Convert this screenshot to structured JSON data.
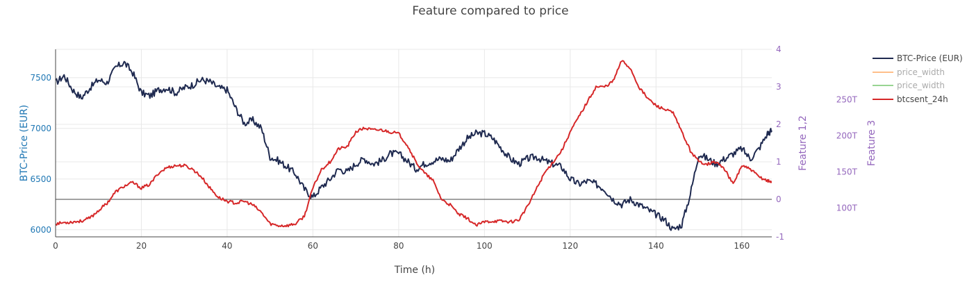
{
  "chart_data": {
    "type": "line",
    "title": "Feature compared to price",
    "xlabel": "Time (h)",
    "ylabel_left": "BTC-Price (EUR)",
    "ylabel_right1": "Feature 1,2",
    "ylabel_right2": "Feature 3",
    "xlim": [
      0,
      167
    ],
    "ylim_left": [
      5930,
      7780
    ],
    "ylim_right1": [
      -1,
      4
    ],
    "ylim_right2": [
      60,
      320
    ],
    "x_ticks": [
      0,
      20,
      40,
      60,
      80,
      100,
      120,
      140,
      160
    ],
    "y_left_ticks": [
      6000,
      6500,
      7000,
      7500
    ],
    "y_right1_ticks": [
      -1,
      0,
      1,
      2,
      3,
      4
    ],
    "y_right2_ticks": [
      {
        "value": 100,
        "label": "100T"
      },
      {
        "value": 150,
        "label": "150T"
      },
      {
        "value": 200,
        "label": "200T"
      },
      {
        "value": 250,
        "label": "250T"
      }
    ],
    "zero_line_right1": 0,
    "grid": true,
    "legend_position": "right",
    "legend": [
      {
        "label": "BTC-Price (EUR)",
        "color": "#1f2a50",
        "dimmed": false
      },
      {
        "label": "price_width",
        "color": "#ffbf8a",
        "dimmed": true
      },
      {
        "label": "price_width",
        "color": "#98d492",
        "dimmed": true
      },
      {
        "label": "btcsent_24h",
        "color": "#d62728",
        "dimmed": false
      }
    ],
    "colors": {
      "price": "#1f2a50",
      "sentiment": "#d62728",
      "left_axis": "#1f77b4",
      "right_axes": "#9467bd",
      "text": "#444444",
      "grid": "#e8e8e8"
    },
    "series": [
      {
        "name": "BTC-Price (EUR)",
        "axis": "left",
        "x": [
          0,
          2,
          4,
          6,
          8,
          10,
          12,
          14,
          16,
          18,
          20,
          22,
          24,
          26,
          28,
          30,
          32,
          34,
          36,
          38,
          40,
          42,
          44,
          46,
          48,
          50,
          52,
          54,
          56,
          58,
          60,
          62,
          64,
          66,
          68,
          70,
          72,
          74,
          76,
          78,
          80,
          82,
          84,
          86,
          88,
          90,
          92,
          94,
          96,
          98,
          100,
          102,
          104,
          106,
          108,
          110,
          112,
          114,
          116,
          118,
          120,
          122,
          124,
          126,
          128,
          130,
          132,
          134,
          136,
          138,
          140,
          142,
          144,
          146,
          148,
          150,
          152,
          154,
          156,
          158,
          160,
          162,
          164,
          166,
          167
        ],
        "values": [
          7450,
          7520,
          7380,
          7300,
          7400,
          7480,
          7450,
          7600,
          7650,
          7550,
          7350,
          7320,
          7380,
          7400,
          7350,
          7400,
          7430,
          7480,
          7460,
          7400,
          7380,
          7200,
          7050,
          7080,
          7000,
          6720,
          6680,
          6620,
          6550,
          6400,
          6320,
          6420,
          6500,
          6600,
          6570,
          6650,
          6700,
          6650,
          6680,
          6750,
          6750,
          6680,
          6600,
          6650,
          6680,
          6700,
          6680,
          6800,
          6900,
          6950,
          6950,
          6900,
          6800,
          6700,
          6650,
          6700,
          6720,
          6680,
          6650,
          6620,
          6500,
          6450,
          6480,
          6450,
          6400,
          6300,
          6250,
          6300,
          6250,
          6200,
          6150,
          6100,
          6000,
          6050,
          6350,
          6750,
          6700,
          6650,
          6700,
          6750,
          6800,
          6700,
          6800,
          6950,
          6980
        ]
      },
      {
        "name": "btcsent_24h",
        "axis": "right1",
        "x": [
          0,
          2,
          4,
          6,
          8,
          10,
          12,
          14,
          16,
          18,
          20,
          22,
          24,
          26,
          28,
          30,
          32,
          34,
          36,
          38,
          40,
          42,
          44,
          46,
          48,
          50,
          52,
          54,
          56,
          58,
          60,
          62,
          64,
          66,
          68,
          70,
          72,
          74,
          76,
          78,
          80,
          82,
          84,
          86,
          88,
          90,
          92,
          94,
          96,
          98,
          100,
          102,
          104,
          106,
          108,
          110,
          112,
          114,
          116,
          118,
          120,
          122,
          124,
          126,
          128,
          130,
          132,
          134,
          136,
          138,
          140,
          142,
          144,
          146,
          148,
          150,
          152,
          154,
          156,
          158,
          160,
          162,
          164,
          166,
          167
        ],
        "values": [
          -0.65,
          -0.62,
          -0.6,
          -0.58,
          -0.5,
          -0.3,
          -0.1,
          0.2,
          0.35,
          0.45,
          0.3,
          0.4,
          0.7,
          0.85,
          0.9,
          0.9,
          0.8,
          0.6,
          0.3,
          0.05,
          -0.05,
          -0.1,
          -0.05,
          -0.15,
          -0.35,
          -0.65,
          -0.7,
          -0.7,
          -0.65,
          -0.45,
          0.3,
          0.8,
          1.0,
          1.35,
          1.4,
          1.8,
          1.9,
          1.85,
          1.85,
          1.8,
          1.75,
          1.45,
          1.0,
          0.7,
          0.5,
          0.0,
          -0.15,
          -0.4,
          -0.5,
          -0.7,
          -0.6,
          -0.58,
          -0.58,
          -0.6,
          -0.55,
          -0.2,
          0.25,
          0.7,
          1.0,
          1.3,
          1.8,
          2.2,
          2.6,
          3.0,
          3.0,
          3.15,
          3.7,
          3.5,
          3.0,
          2.7,
          2.5,
          2.4,
          2.3,
          1.8,
          1.3,
          1.0,
          0.95,
          1.0,
          0.8,
          0.4,
          0.9,
          0.8,
          0.6,
          0.5,
          0.45
        ]
      }
    ]
  }
}
